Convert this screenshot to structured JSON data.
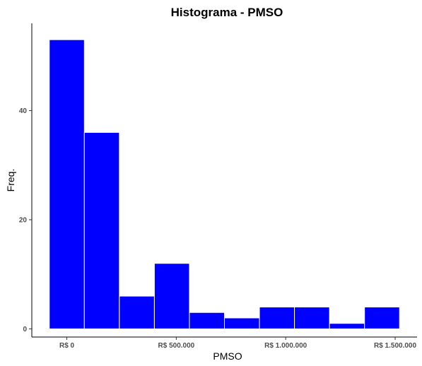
{
  "chart_data": {
    "type": "bar",
    "title": "Histograma  - PMSO",
    "xlabel": "PMSO",
    "ylabel": "Freq.",
    "bar_color": "#0000ff",
    "bar_border_color": "#ffffff",
    "grid": false,
    "bins": [
      {
        "start": -80000,
        "end": 80000,
        "count": 53
      },
      {
        "start": 80000,
        "end": 240000,
        "count": 36
      },
      {
        "start": 240000,
        "end": 400000,
        "count": 6
      },
      {
        "start": 400000,
        "end": 560000,
        "count": 12
      },
      {
        "start": 560000,
        "end": 720000,
        "count": 3
      },
      {
        "start": 720000,
        "end": 880000,
        "count": 2
      },
      {
        "start": 880000,
        "end": 1040000,
        "count": 4
      },
      {
        "start": 1040000,
        "end": 1200000,
        "count": 4
      },
      {
        "start": 1200000,
        "end": 1360000,
        "count": 1
      },
      {
        "start": 1360000,
        "end": 1520000,
        "count": 4
      }
    ],
    "xlim": [
      -160000,
      1600000
    ],
    "ylim": [
      -1.5,
      56
    ],
    "x_ticks": [
      {
        "value": 0,
        "label": "R$ 0"
      },
      {
        "value": 500000,
        "label": "R$ 500.000"
      },
      {
        "value": 1000000,
        "label": "R$ 1.000.000"
      },
      {
        "value": 1500000,
        "label": "R$ 1.500.000"
      }
    ],
    "y_ticks": [
      {
        "value": 0,
        "label": "0"
      },
      {
        "value": 20,
        "label": "20"
      },
      {
        "value": 40,
        "label": "40"
      }
    ]
  }
}
